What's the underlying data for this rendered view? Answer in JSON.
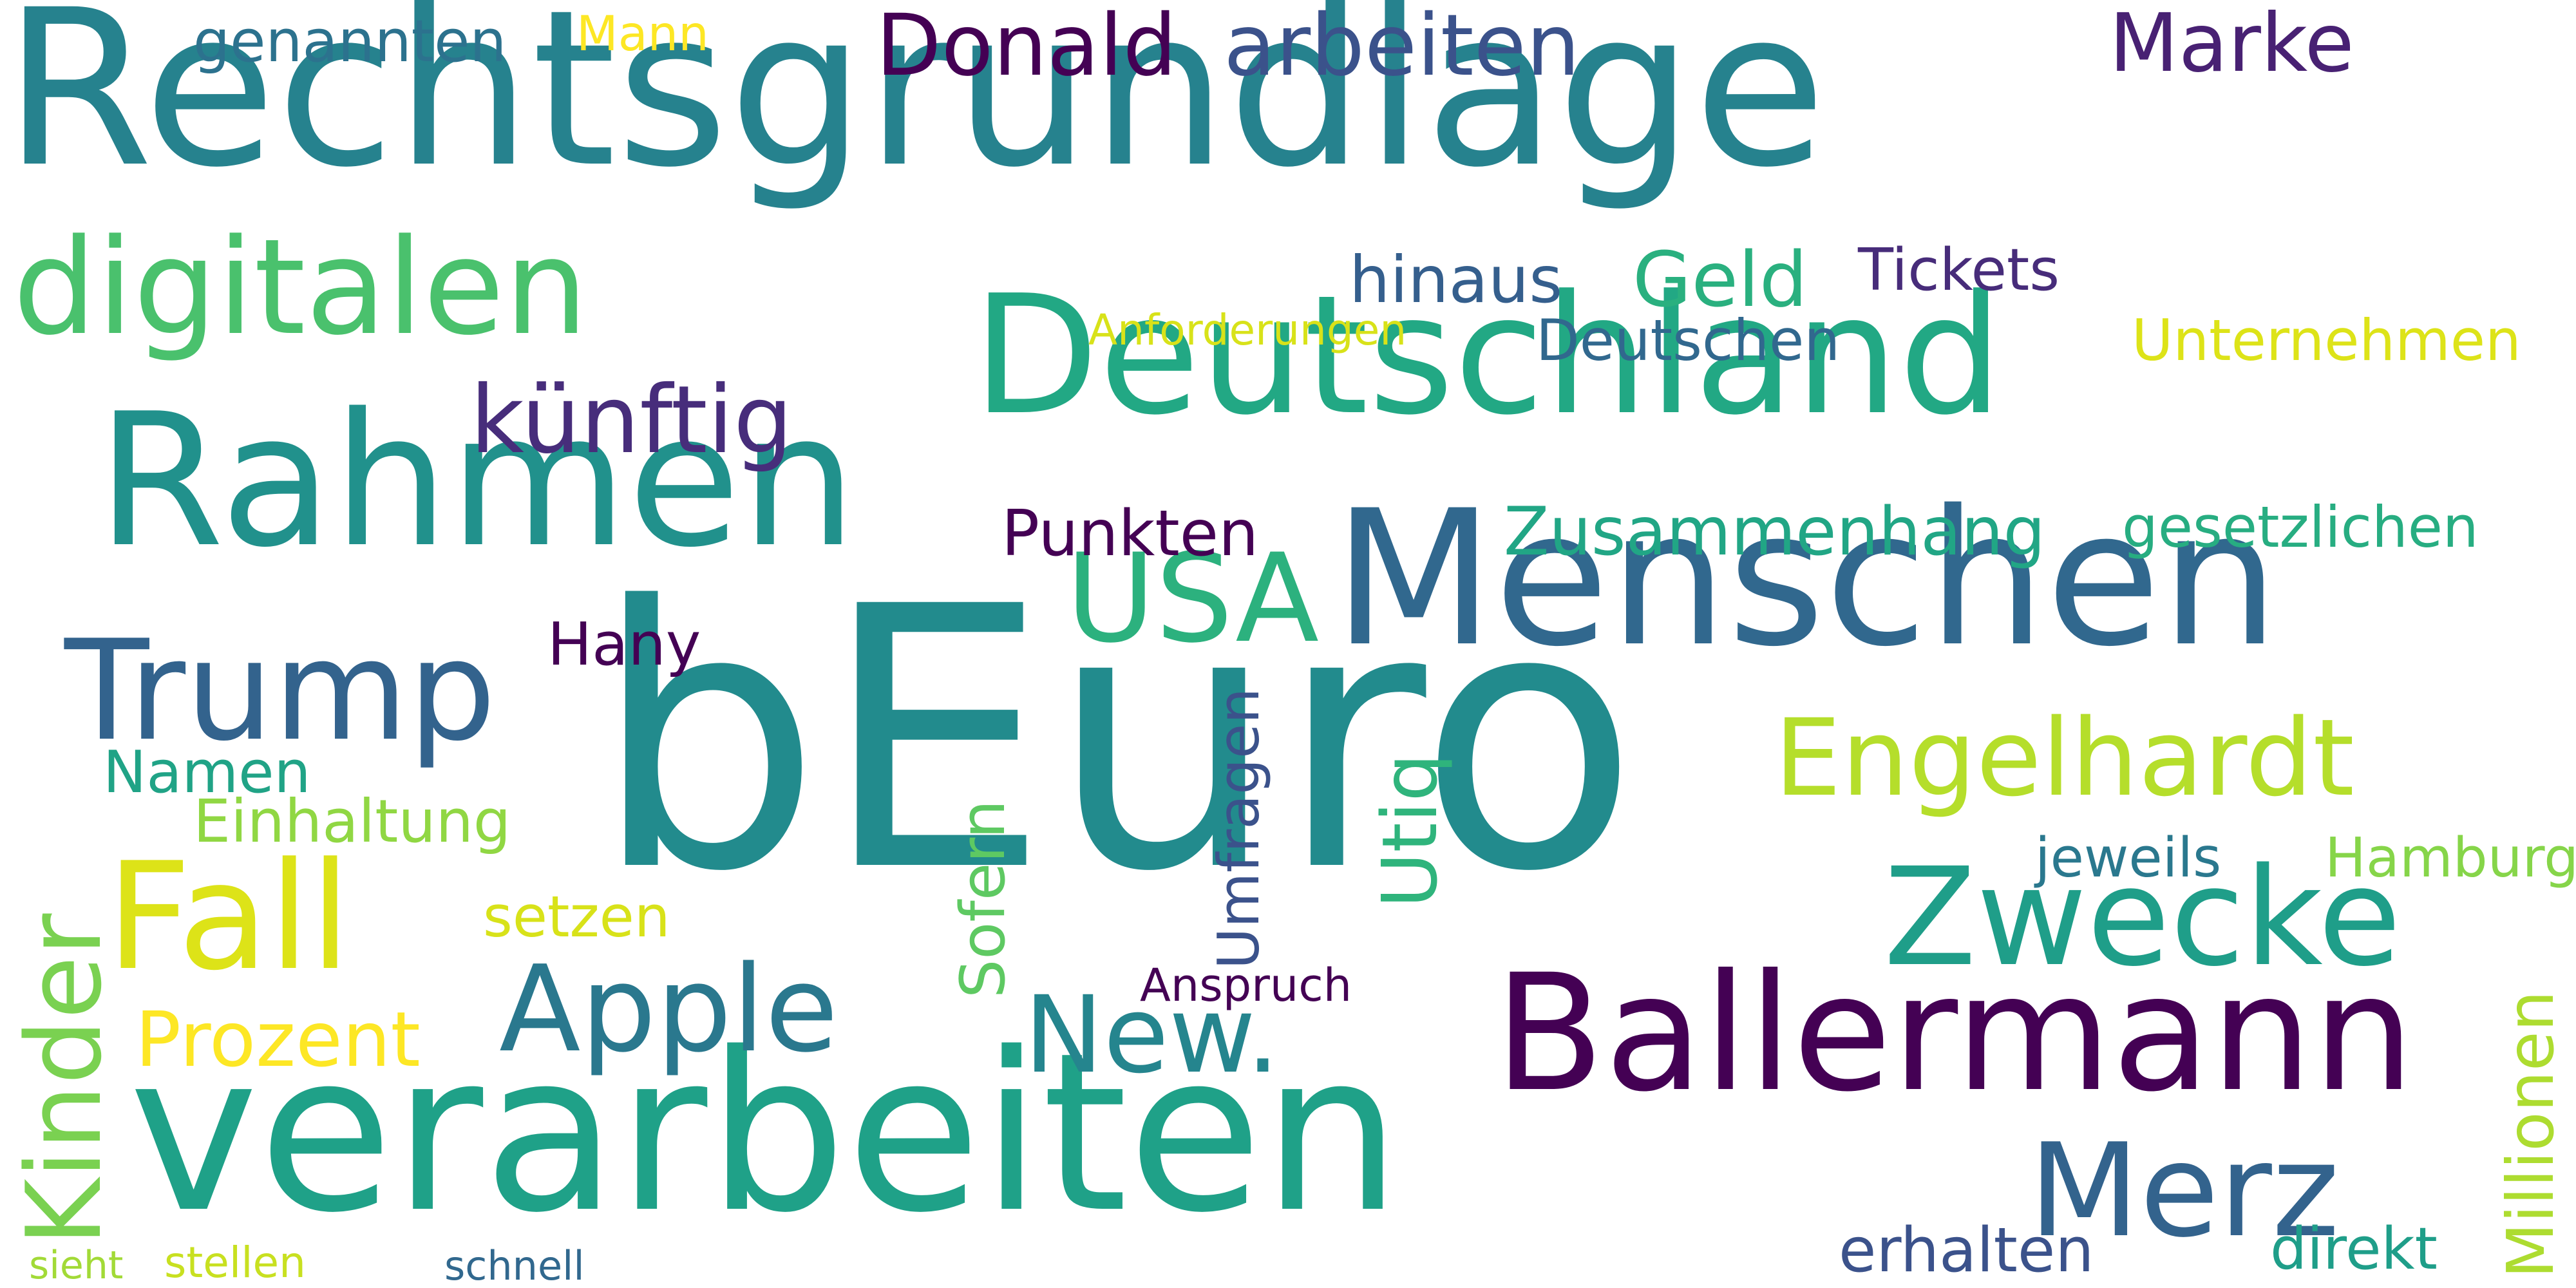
{
  "words": [
    {
      "text": "Rechtsgrundlage",
      "color": "#26828e"
    },
    {
      "text": "digitalen",
      "color": "#4ac16d"
    },
    {
      "text": "Deutschland",
      "color": "#22a884"
    },
    {
      "text": "Rahmen",
      "color": "#21918c"
    },
    {
      "text": "Menschen",
      "color": "#31688e"
    },
    {
      "text": "bEuro",
      "color": "#228b8d"
    },
    {
      "text": "verarbeiten",
      "color": "#1fa188"
    },
    {
      "text": "Ballermann",
      "color": "#440154"
    },
    {
      "text": "Engelhardt",
      "color": "#b5de2b"
    },
    {
      "text": "Zwecke",
      "color": "#1f9e89"
    },
    {
      "text": "Merz",
      "color": "#33638d"
    },
    {
      "text": "USA",
      "color": "#2cb17e"
    },
    {
      "text": "Trump",
      "color": "#33638d"
    },
    {
      "text": "Fall",
      "color": "#dde318"
    },
    {
      "text": "Kinder",
      "color": "#7ad151"
    },
    {
      "text": "Apple",
      "color": "#2a788e"
    },
    {
      "text": "New.",
      "color": "#25858e"
    },
    {
      "text": "Donald",
      "color": "#440154"
    },
    {
      "text": "arbeiten",
      "color": "#3b528b"
    },
    {
      "text": "Marke",
      "color": "#482173"
    },
    {
      "text": "künftig",
      "color": "#472d7b"
    },
    {
      "text": "Geld",
      "color": "#2ab07f"
    },
    {
      "text": "hinaus",
      "color": "#355f8d"
    },
    {
      "text": "Tickets",
      "color": "#472c7a"
    },
    {
      "text": "Deutschen",
      "color": "#31688e"
    },
    {
      "text": "Unternehmen",
      "color": "#dde318"
    },
    {
      "text": "gesetzlichen",
      "color": "#27ad81"
    },
    {
      "text": "Zusammenhang",
      "color": "#21a685"
    },
    {
      "text": "Punkten",
      "color": "#440154"
    },
    {
      "text": "Prozent",
      "color": "#fde725"
    },
    {
      "text": "Einhaltung",
      "color": "#90d743"
    },
    {
      "text": "Namen",
      "color": "#20a386"
    },
    {
      "text": "setzen",
      "color": "#d8e219"
    },
    {
      "text": "Hany",
      "color": "#440154"
    },
    {
      "text": "Umfragen",
      "color": "#3b528b"
    },
    {
      "text": "Sofern",
      "color": "#5ec962"
    },
    {
      "text": "Utiq",
      "color": "#2fb47c"
    },
    {
      "text": "Anspruch",
      "color": "#440154"
    },
    {
      "text": "jeweils",
      "color": "#2a788e"
    },
    {
      "text": "Hamburg",
      "color": "#86d549"
    },
    {
      "text": "Millionen",
      "color": "#addc30"
    },
    {
      "text": "erhalten",
      "color": "#3b528b"
    },
    {
      "text": "direkt",
      "color": "#1f9e89"
    },
    {
      "text": "genannten",
      "color": "#2c728e"
    },
    {
      "text": "Mann",
      "color": "#fde725"
    },
    {
      "text": "Anforderungen",
      "color": "#d8e219"
    },
    {
      "text": "sieht",
      "color": "#a2da37"
    },
    {
      "text": "stellen",
      "color": "#c8e020"
    },
    {
      "text": "schnell",
      "color": "#31688e"
    }
  ]
}
